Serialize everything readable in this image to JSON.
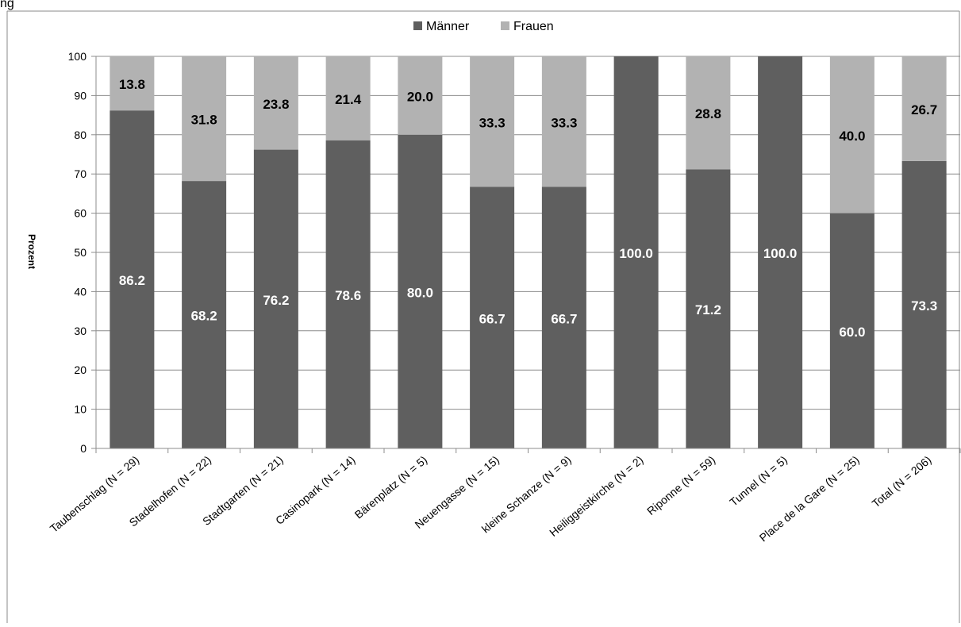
{
  "chart_data": {
    "type": "bar",
    "stacked": true,
    "title": "",
    "top_left_text": "ng",
    "xlabel": "",
    "ylabel": "Prozent",
    "ylim": [
      0,
      100
    ],
    "yticks": [
      0,
      10,
      20,
      30,
      40,
      50,
      60,
      70,
      80,
      90,
      100
    ],
    "grid": "horizontal",
    "legend_position": "top-center",
    "categories": [
      "Taubenschlag (N = 29)",
      "Stadelhofen (N = 22)",
      "Stadtgarten (N = 21)",
      "Casinopark (N = 14)",
      "Bärenplatz (N = 5)",
      "Neuengasse (N = 15)",
      "kleine Schanze (N = 9)",
      "Heiliggeistkirche (N = 2)",
      "Riponne (N = 59)",
      "Tunnel (N = 5)",
      "Place de la Gare (N = 25)",
      "Total (N = 206)"
    ],
    "series": [
      {
        "name": "Männer",
        "color": "#5f5f5f",
        "label_color": "#ffffff",
        "values": [
          86.2,
          68.2,
          76.2,
          78.6,
          80.0,
          66.7,
          66.7,
          100.0,
          71.2,
          100.0,
          60.0,
          73.3
        ],
        "labels": [
          "86.2",
          "68.2",
          "76.2",
          "78.6",
          "80.0",
          "66.7",
          "66.7",
          "100.0",
          "71.2",
          "100.0",
          "60.0",
          "73.3"
        ]
      },
      {
        "name": "Frauen",
        "color": "#b2b2b2",
        "label_color": "#000000",
        "values": [
          13.8,
          31.8,
          23.8,
          21.4,
          20.0,
          33.3,
          33.3,
          0,
          28.8,
          0,
          40.0,
          26.7
        ],
        "labels": [
          "13.8",
          "31.8",
          "23.8",
          "21.4",
          "20.0",
          "33.3",
          "33.3",
          "",
          "28.8",
          "",
          "40.0",
          "26.7"
        ]
      }
    ]
  }
}
